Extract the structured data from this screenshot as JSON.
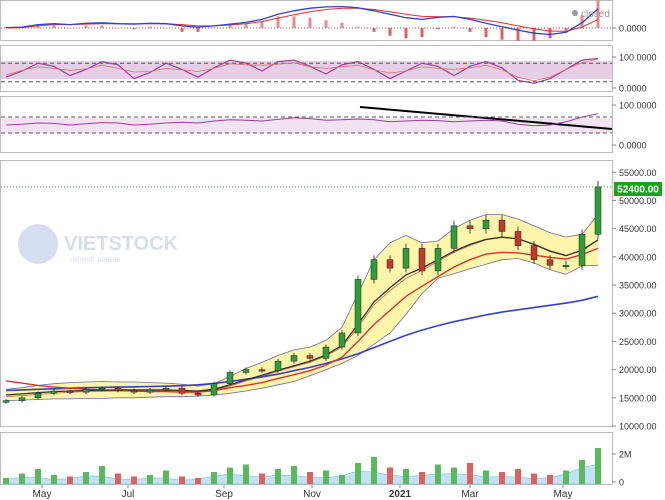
{
  "indicator_closed_label": "closed",
  "watermark": {
    "brand": "VIETSTOCK",
    "tagline": "refresh please"
  },
  "current_price_label": "52400.00",
  "colors": {
    "up_candle": "#2e9e3a",
    "down_candle": "#c0392b",
    "bollinger_fill": "#fff4a6",
    "ma_blue": "#3640c8",
    "ma_red": "#e03030",
    "ma_dark": "#333333",
    "stoch_fill": "#d9b3d9",
    "current_price": "#1fa01f"
  },
  "chart_data": [
    {
      "type": "line",
      "panel": "macd",
      "y_ticks": [
        "0.0000"
      ],
      "series": [
        {
          "values": [
            0.1,
            0.2,
            0.8,
            1.0,
            0.8,
            1.1,
            1.2,
            1.0,
            0.9,
            1.1,
            1.0,
            0.5,
            0.2,
            0.5,
            0.9,
            1.3,
            2.0,
            3.2,
            4.0,
            4.6,
            4.9,
            5.0,
            4.7,
            4.0,
            3.2,
            2.4,
            2.0,
            2.5,
            2.7,
            2.0,
            1.1,
            0.3,
            -0.5,
            -1.2,
            -1.5,
            -1.0,
            1.2,
            4.5
          ]
        },
        {
          "values": [
            0.0,
            0.1,
            0.5,
            0.8,
            0.8,
            0.9,
            1.0,
            1.0,
            1.0,
            1.0,
            1.0,
            0.8,
            0.5,
            0.5,
            0.7,
            1.0,
            1.5,
            2.3,
            3.1,
            3.8,
            4.3,
            4.6,
            4.6,
            4.3,
            3.8,
            3.2,
            2.7,
            2.6,
            2.6,
            2.3,
            1.8,
            1.2,
            0.5,
            -0.2,
            -0.7,
            -0.8,
            0.2,
            2.0
          ]
        }
      ]
    },
    {
      "type": "line",
      "panel": "stochastic",
      "y_ticks": [
        "100.0000",
        "0.0000"
      ],
      "bands": [
        20,
        80
      ],
      "series": [
        {
          "values": [
            35,
            55,
            80,
            70,
            40,
            60,
            85,
            75,
            30,
            50,
            80,
            60,
            35,
            65,
            90,
            80,
            55,
            85,
            90,
            70,
            45,
            75,
            85,
            60,
            30,
            55,
            80,
            70,
            40,
            70,
            85,
            65,
            25,
            15,
            30,
            60,
            90,
            95
          ]
        }
      ]
    },
    {
      "type": "line",
      "panel": "rsi",
      "y_ticks": [
        "100.0000",
        "0.0000"
      ],
      "bands": [
        30,
        70
      ],
      "series": [
        {
          "values": [
            50,
            52,
            55,
            54,
            50,
            53,
            56,
            55,
            50,
            52,
            55,
            57,
            55,
            60,
            63,
            62,
            60,
            64,
            68,
            66,
            62,
            63,
            65,
            63,
            58,
            60,
            62,
            61,
            58,
            60,
            62,
            60,
            52,
            48,
            50,
            58,
            70,
            78
          ]
        }
      ]
    },
    {
      "type": "line",
      "panel": "price",
      "current_price": 52400,
      "y_ticks": [
        "55000.00",
        "50000.00",
        "45000.00",
        "40000.00",
        "35000.00",
        "30000.00",
        "25000.00",
        "20000.00",
        "15000.00",
        "10000.00"
      ],
      "x_ticks": [
        "May",
        "Jul",
        "Sep",
        "Nov",
        "2021",
        "Mar",
        "May"
      ],
      "series": [
        {
          "values": [
            14500,
            15000,
            15800,
            16200,
            16000,
            16500,
            16700,
            16300,
            16000,
            16400,
            16700,
            15800,
            15500,
            17500,
            19500,
            20000,
            19800,
            21500,
            22500,
            22000,
            24000,
            26500,
            36000,
            39500,
            38000,
            41500,
            37500,
            41500,
            45500,
            45000,
            46500,
            44500,
            42000,
            39500,
            38500,
            38500,
            44000,
            52400
          ]
        },
        {
          "values": [
            16300,
            16400,
            16500,
            16600,
            16700,
            16800,
            16850,
            16900,
            16950,
            17000,
            17050,
            17150,
            17300,
            17550,
            17900,
            18300,
            18700,
            19200,
            19800,
            20400,
            21100,
            21900,
            22800,
            23900,
            25000,
            26100,
            27000,
            27800,
            28500,
            29100,
            29700,
            30200,
            30600,
            31000,
            31400,
            31800,
            32300,
            33000
          ]
        },
        {
          "values": [
            18000,
            17600,
            17200,
            16900,
            16700,
            16500,
            16400,
            16300,
            16200,
            16100,
            16100,
            16000,
            16000,
            16300,
            16800,
            17200,
            17700,
            18400,
            19100,
            19800,
            20800,
            22200,
            25000,
            28000,
            30500,
            33000,
            34800,
            36500,
            38200,
            39500,
            40500,
            40800,
            40700,
            40300,
            39900,
            39600,
            40400,
            41500
          ]
        },
        {
          "values": [
            15500,
            15700,
            15900,
            16100,
            16200,
            16300,
            16350,
            16400,
            16400,
            16400,
            16400,
            16300,
            16200,
            16500,
            17300,
            18200,
            19000,
            19900,
            20700,
            21500,
            22600,
            24300,
            28000,
            32000,
            34500,
            36800,
            38000,
            39500,
            41000,
            42200,
            43100,
            43500,
            43200,
            42200,
            41000,
            40200,
            41200,
            43000
          ]
        },
        {
          "values": [
            16500,
            16800,
            17200,
            17500,
            17700,
            17800,
            17900,
            17800,
            17800,
            17700,
            17600,
            17400,
            17100,
            17500,
            18800,
            20200,
            21300,
            22500,
            23500,
            24000,
            25200,
            27500,
            33500,
            39500,
            42500,
            43800,
            42500,
            42800,
            45000,
            46500,
            47500,
            47500,
            46700,
            45500,
            44300,
            43500,
            44000,
            47500
          ]
        },
        {
          "values": [
            14500,
            14600,
            14700,
            14800,
            14800,
            14900,
            14900,
            15000,
            15000,
            15100,
            15200,
            15200,
            15300,
            15500,
            15800,
            16200,
            16700,
            17300,
            17900,
            18900,
            20000,
            21100,
            22500,
            24500,
            26500,
            29800,
            33500,
            36200,
            37000,
            37900,
            38700,
            39500,
            39700,
            38900,
            37700,
            36900,
            38400,
            38500
          ]
        },
        {
          "values": [
            15200,
            15400,
            15600,
            15800,
            16000,
            16100,
            16150,
            16200,
            16200,
            16200,
            16250,
            16200,
            16100,
            16400,
            17100,
            18000,
            18800,
            19700,
            20500,
            21300,
            22400,
            24000,
            27500,
            31500,
            34000,
            36200,
            37600,
            39200,
            40800,
            42000,
            43000,
            43400,
            43200,
            42300,
            41100,
            40300,
            41000,
            43000
          ]
        }
      ]
    },
    {
      "type": "bar",
      "panel": "volume",
      "y_ticks": [
        "2M",
        "0"
      ],
      "values": [
        0.4,
        0.7,
        1.0,
        0.6,
        0.5,
        0.8,
        1.2,
        0.7,
        0.5,
        0.6,
        0.9,
        0.5,
        0.4,
        0.8,
        1.1,
        1.3,
        0.7,
        1.0,
        1.2,
        0.8,
        0.9,
        0.6,
        1.4,
        1.8,
        1.1,
        1.0,
        0.8,
        1.3,
        1.1,
        1.4,
        0.9,
        0.8,
        1.0,
        0.7,
        0.6,
        0.9,
        1.6,
        2.4
      ]
    }
  ]
}
